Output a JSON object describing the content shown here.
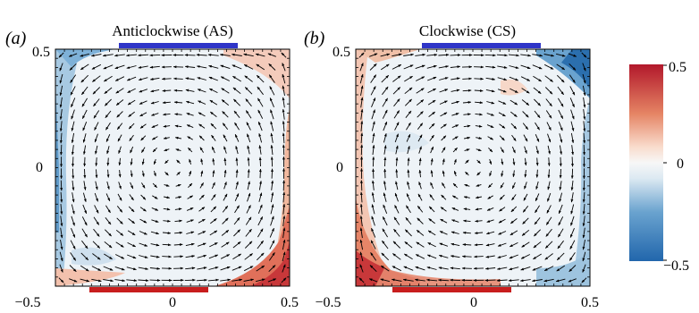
{
  "panels": [
    {
      "label": "(a)",
      "title": "Anticlockwise (AS)",
      "x_ticks": [
        "−0.5",
        "0",
        "0.5"
      ],
      "y_ticks": [
        "0.5",
        "0"
      ],
      "rotation": "anticlockwise"
    },
    {
      "label": "(b)",
      "title": "Clockwise (CS)",
      "x_ticks": [
        "−0.5",
        "0",
        "0.5"
      ],
      "y_ticks": [
        "0.5",
        "0"
      ],
      "rotation": "clockwise"
    }
  ],
  "colorbar": {
    "ticks": [
      "0.5",
      "0",
      "−0.5"
    ],
    "range": [
      -0.5,
      0.5
    ],
    "colormap": [
      "#2166ac",
      "#67a9cf",
      "#d1e5f0",
      "#f7f7f7",
      "#fddbc7",
      "#ef8a62",
      "#b2182b"
    ]
  },
  "colors": {
    "top_plate": "#2f35c8",
    "bottom_plate": "#c81e1e"
  }
}
